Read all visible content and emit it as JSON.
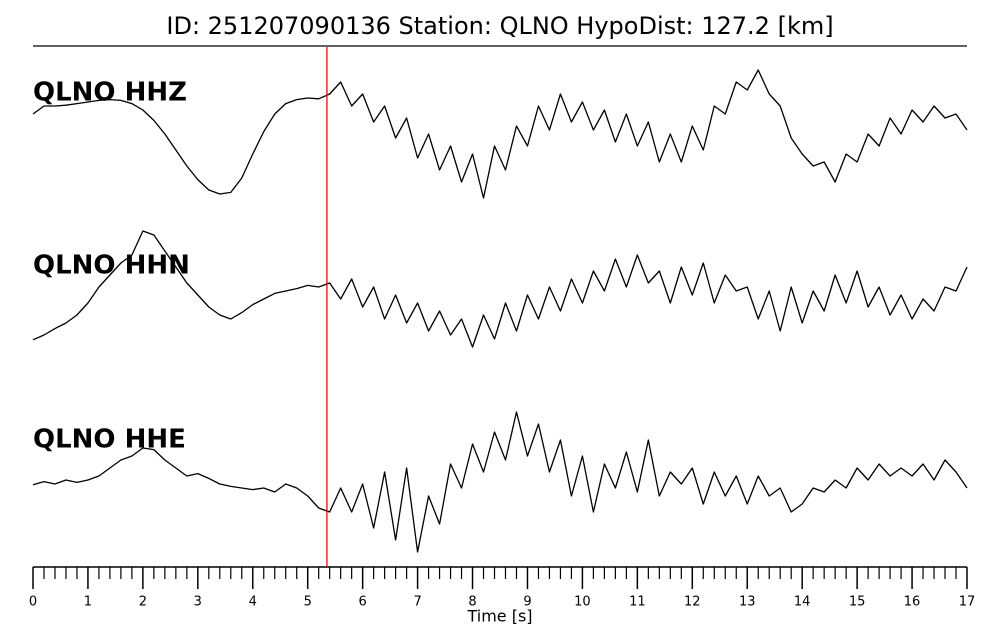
{
  "chart_data": {
    "type": "line",
    "title": "ID: 251207090136   Station: QLNO   HypoDist:   127.2 [km]",
    "xlabel": "Time [s]",
    "x": [
      0,
      0.2,
      0.4,
      0.6,
      0.8,
      1,
      1.2,
      1.4,
      1.6,
      1.8,
      2,
      2.2,
      2.4,
      2.6,
      2.8,
      3,
      3.2,
      3.4,
      3.6,
      3.8,
      4,
      4.2,
      4.4,
      4.6,
      4.8,
      5,
      5.2,
      5.4,
      5.6,
      5.8,
      6,
      6.2,
      6.4,
      6.6,
      6.8,
      7,
      7.2,
      7.4,
      7.6,
      7.8,
      8,
      8.2,
      8.4,
      8.6,
      8.8,
      9,
      9.2,
      9.4,
      9.6,
      9.8,
      10,
      10.2,
      10.4,
      10.6,
      10.8,
      11,
      11.2,
      11.4,
      11.6,
      11.8,
      12,
      12.2,
      12.4,
      12.6,
      12.8,
      13,
      13.2,
      13.4,
      13.6,
      13.8,
      14,
      14.2,
      14.4,
      14.6,
      14.8,
      15,
      15.2,
      15.4,
      15.6,
      15.8,
      16,
      16.2,
      16.4,
      16.6,
      16.8,
      17
    ],
    "series": [
      {
        "name": "QLNO HHZ",
        "color": "#000000",
        "values": [
          0.2,
          0.3,
          0.3,
          0.31,
          0.33,
          0.35,
          0.37,
          0.38,
          0.37,
          0.33,
          0.25,
          0.12,
          -0.05,
          -0.25,
          -0.45,
          -0.62,
          -0.75,
          -0.8,
          -0.78,
          -0.6,
          -0.3,
          -0.02,
          0.2,
          0.33,
          0.38,
          0.4,
          0.39,
          0.45,
          0.6,
          0.3,
          0.45,
          0.1,
          0.3,
          -0.1,
          0.15,
          -0.35,
          -0.05,
          -0.5,
          -0.2,
          -0.65,
          -0.3,
          -0.85,
          -0.2,
          -0.5,
          0.05,
          -0.2,
          0.3,
          0,
          0.45,
          0.1,
          0.35,
          0,
          0.25,
          -0.15,
          0.2,
          -0.2,
          0.1,
          -0.4,
          -0.05,
          -0.4,
          0.05,
          -0.25,
          0.3,
          0.2,
          0.6,
          0.5,
          0.75,
          0.45,
          0.3,
          -0.1,
          -0.3,
          -0.45,
          -0.4,
          -0.65,
          -0.3,
          -0.4,
          -0.05,
          -0.2,
          0.15,
          -0.05,
          0.25,
          0.1,
          0.3,
          0.15,
          0.2,
          0
        ]
      },
      {
        "name": "QLNO HHN",
        "color": "#000000",
        "values": [
          -0.56,
          -0.5,
          -0.42,
          -0.35,
          -0.25,
          -0.1,
          0.1,
          0.25,
          0.4,
          0.5,
          0.8,
          0.75,
          0.55,
          0.35,
          0.15,
          0,
          -0.15,
          -0.25,
          -0.3,
          -0.22,
          -0.12,
          -0.05,
          0.02,
          0.05,
          0.08,
          0.12,
          0.1,
          0.15,
          -0.05,
          0.2,
          -0.15,
          0.1,
          -0.3,
          0,
          -0.35,
          -0.1,
          -0.45,
          -0.2,
          -0.5,
          -0.3,
          -0.65,
          -0.25,
          -0.55,
          -0.1,
          -0.45,
          0,
          -0.3,
          0.1,
          -0.2,
          0.2,
          -0.1,
          0.3,
          0.05,
          0.45,
          0.1,
          0.5,
          0.15,
          0.3,
          -0.1,
          0.35,
          0,
          0.4,
          -0.1,
          0.25,
          0.05,
          0.1,
          -0.3,
          0.05,
          -0.45,
          0.1,
          -0.35,
          0.05,
          -0.2,
          0.25,
          -0.1,
          0.3,
          -0.15,
          0.1,
          -0.25,
          0,
          -0.3,
          -0.05,
          -0.2,
          0.1,
          0.05,
          0.35
        ]
      },
      {
        "name": "QLNO HHE",
        "color": "#000000",
        "values": [
          -0.06,
          -0.02,
          -0.05,
          0,
          -0.03,
          0,
          0.05,
          0.15,
          0.25,
          0.3,
          0.4,
          0.38,
          0.25,
          0.15,
          0.05,
          0.08,
          0.02,
          -0.05,
          -0.08,
          -0.1,
          -0.12,
          -0.1,
          -0.15,
          -0.05,
          -0.1,
          -0.2,
          -0.35,
          -0.4,
          -0.1,
          -0.4,
          -0.05,
          -0.6,
          0.1,
          -0.75,
          0.15,
          -0.9,
          -0.2,
          -0.55,
          0.2,
          -0.1,
          0.45,
          0.1,
          0.6,
          0.25,
          0.85,
          0.3,
          0.7,
          0.1,
          0.5,
          -0.2,
          0.3,
          -0.4,
          0.2,
          -0.1,
          0.35,
          -0.15,
          0.5,
          -0.2,
          0.1,
          -0.05,
          0.15,
          -0.3,
          0.1,
          -0.2,
          0.05,
          -0.3,
          0.05,
          -0.2,
          -0.1,
          -0.4,
          -0.3,
          -0.1,
          -0.15,
          0,
          -0.1,
          0.15,
          0,
          0.2,
          0.05,
          0.15,
          0.05,
          0.2,
          0,
          0.25,
          0.1,
          -0.1
        ]
      }
    ],
    "label_color": "#4c9a00",
    "pick": {
      "value": 5.35,
      "color": "#ff0000"
    },
    "xlim": [
      0,
      17
    ],
    "ylim": [
      -1,
      1
    ],
    "xticks": [
      0,
      1,
      2,
      3,
      4,
      5,
      6,
      7,
      8,
      9,
      10,
      11,
      12,
      13,
      14,
      15,
      16,
      17
    ],
    "xminorticks": [
      0.2,
      0.4,
      0.6,
      0.8,
      1.2,
      1.4,
      1.6,
      1.8,
      2.2,
      2.4,
      2.6,
      2.8,
      3.2,
      3.4,
      3.6,
      3.8,
      4.2,
      4.4,
      4.6,
      4.8,
      5.2,
      5.4,
      5.6,
      5.8,
      6.2,
      6.4,
      6.6,
      6.8,
      7.2,
      7.4,
      7.6,
      7.8,
      8.2,
      8.4,
      8.6,
      8.8,
      9.2,
      9.4,
      9.6,
      9.8,
      10.2,
      10.4,
      10.6,
      10.8,
      11.2,
      11.4,
      11.6,
      11.8,
      12.2,
      12.4,
      12.6,
      12.8,
      13.2,
      13.4,
      13.6,
      13.8,
      14.2,
      14.4,
      14.6,
      14.8,
      15.2,
      15.4,
      15.6,
      15.8,
      16.2,
      16.4,
      16.6,
      16.8
    ]
  }
}
